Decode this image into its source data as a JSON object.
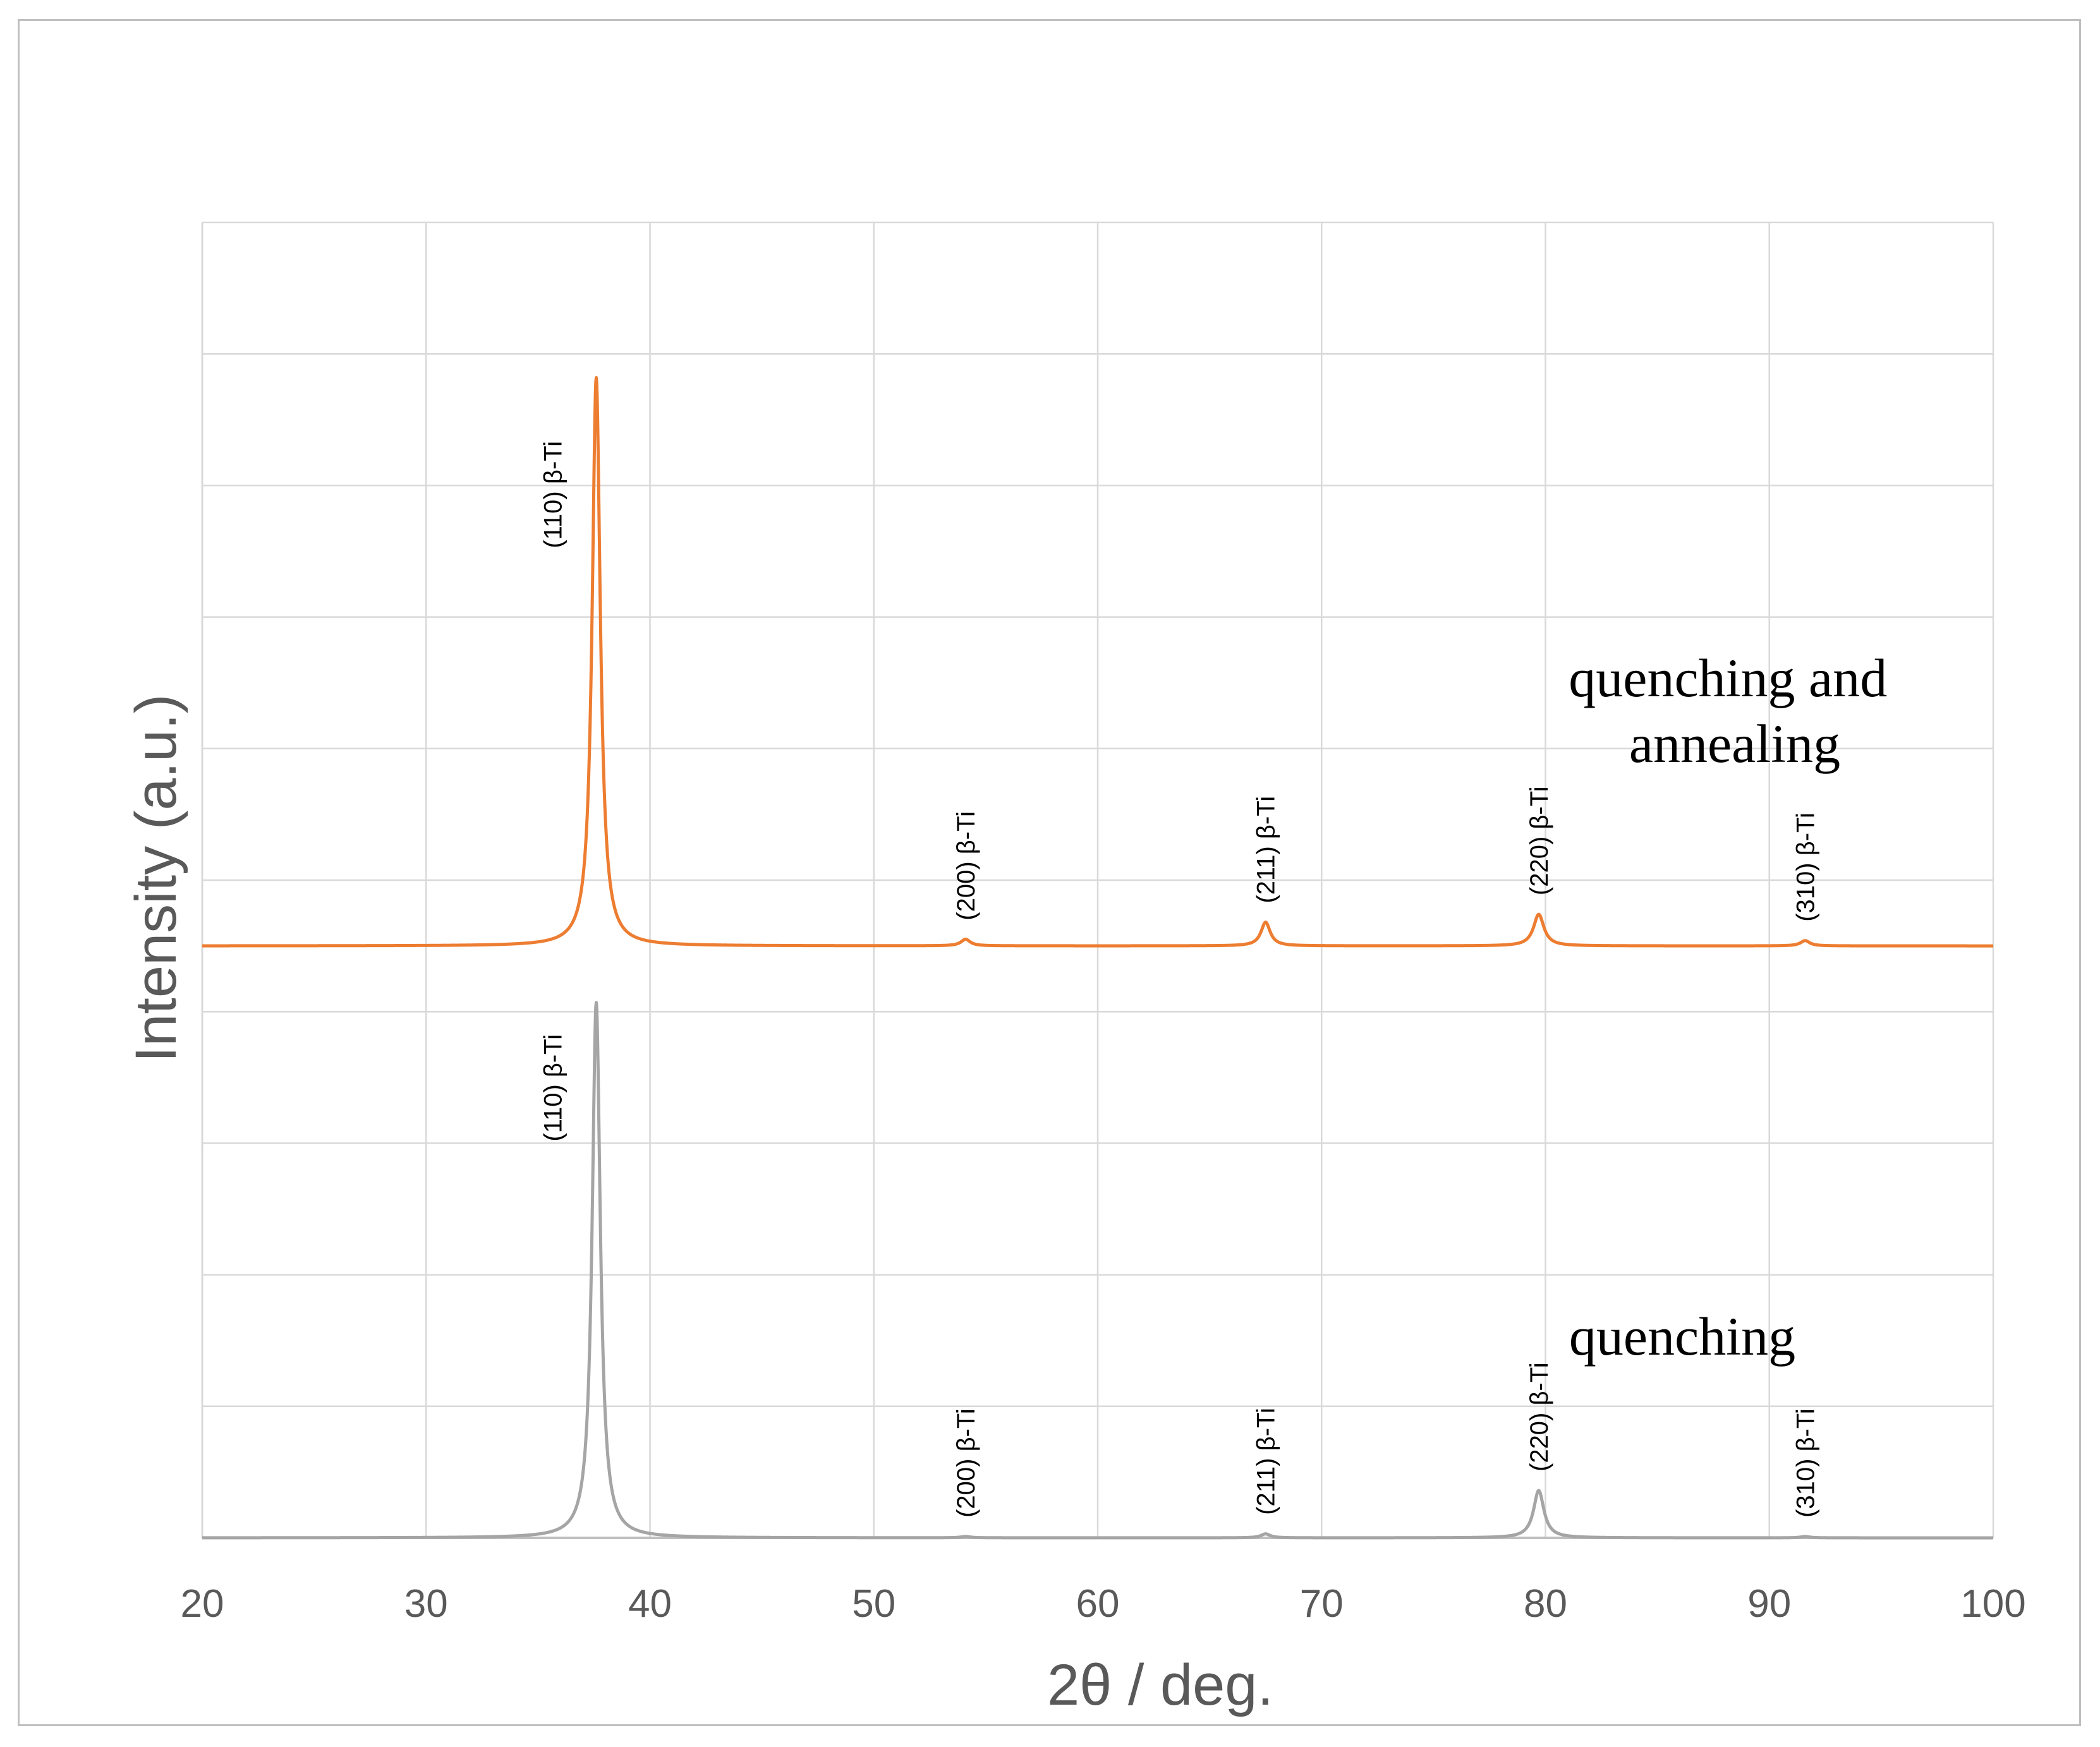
{
  "chart_data": {
    "type": "line",
    "xlabel": "2θ / deg.",
    "ylabel": "Intensity (a.u.)",
    "xlim": [
      20,
      100
    ],
    "x_ticks": [
      "20",
      "30",
      "40",
      "50",
      "60",
      "70",
      "80",
      "90",
      "100"
    ],
    "ylim": [
      0,
      10
    ],
    "y_tick_labels_shown": false,
    "grid": true,
    "legend": "none (series labeled directly on plot)",
    "series": [
      {
        "name": "quenching and annealing",
        "color": "#ed7d31",
        "baseline": 4.5,
        "peaks": [
          {
            "x": 37.6,
            "height": 4.32,
            "width": 0.22,
            "label": "(110) β-Ti"
          },
          {
            "x": 54.1,
            "height": 0.05,
            "width": 0.25,
            "label": "(200) β-Ti"
          },
          {
            "x": 67.5,
            "height": 0.18,
            "width": 0.25,
            "label": "(211) β-Ti"
          },
          {
            "x": 79.7,
            "height": 0.24,
            "width": 0.28,
            "label": "(220) β-Ti"
          },
          {
            "x": 91.6,
            "height": 0.04,
            "width": 0.25,
            "label": "(310) β-Ti"
          }
        ]
      },
      {
        "name": "quenching",
        "color": "#a5a5a5",
        "baseline": 0.0,
        "peaks": [
          {
            "x": 37.6,
            "height": 4.07,
            "width": 0.22,
            "label": "(110) β-Ti"
          },
          {
            "x": 54.1,
            "height": 0.01,
            "width": 0.25,
            "label": "(200) β-Ti"
          },
          {
            "x": 67.5,
            "height": 0.03,
            "width": 0.25,
            "label": "(211) β-Ti"
          },
          {
            "x": 79.7,
            "height": 0.36,
            "width": 0.28,
            "label": "(220) β-Ti"
          },
          {
            "x": 91.6,
            "height": 0.01,
            "width": 0.25,
            "label": "(310) β-Ti"
          }
        ]
      }
    ]
  }
}
